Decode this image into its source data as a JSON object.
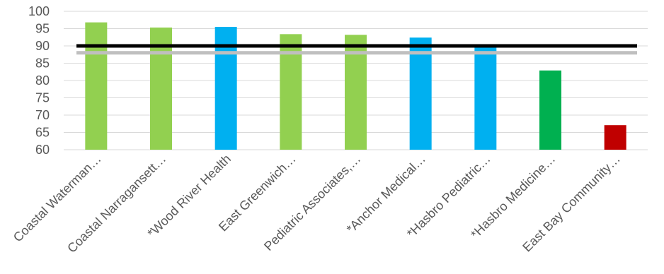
{
  "chart_data": {
    "type": "bar",
    "title": "",
    "xlabel": "",
    "ylabel": "",
    "ylim": [
      60,
      100
    ],
    "yticks": [
      60,
      65,
      70,
      75,
      80,
      85,
      90,
      95,
      100
    ],
    "grid": true,
    "legend": "none",
    "categories": [
      "Coastal Waterman…",
      "Coastal Narragansett…",
      "*Wood River Health",
      "East Greenwich…",
      "Pediatric Associates,…",
      "*Anchor Medical…",
      "*Hasbro Pediatric…",
      "*Hasbro Medicine…",
      "East Bay Community…"
    ],
    "values": [
      96.8,
      95.3,
      95.5,
      93.4,
      93.2,
      92.4,
      89.7,
      82.9,
      67.1
    ],
    "bar_colors": [
      "#92d050",
      "#92d050",
      "#00b0f0",
      "#92d050",
      "#92d050",
      "#00b0f0",
      "#00b0f0",
      "#00b050",
      "#c00000"
    ],
    "reference_lines": [
      {
        "value": 90,
        "color": "#000000"
      },
      {
        "value": 88,
        "color": "#bfbfbf"
      }
    ]
  }
}
